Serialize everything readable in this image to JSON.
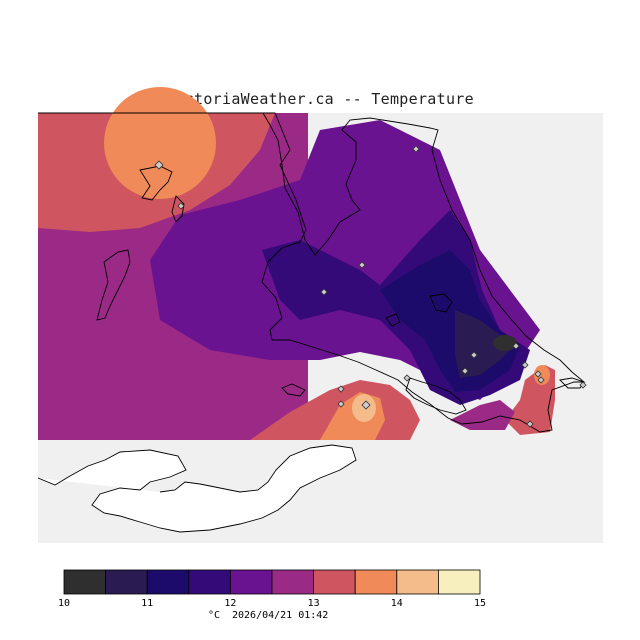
{
  "title": "VictoriaWeather.ca -- Temperature",
  "legend": {
    "ticks": [
      "10",
      "11",
      "12",
      "13",
      "14",
      "15"
    ],
    "colors": [
      "#2f2f2f",
      "#2a1c52",
      "#1c0b6b",
      "#330a78",
      "#6a1390",
      "#9a2a86",
      "#cf5660",
      "#f08a58",
      "#f4bc8a",
      "#f7efbd"
    ],
    "unit": "°C",
    "timestamp": "2026/04/21 01:42"
  },
  "colors": {
    "land_background": "#f0f0f0",
    "water": "#ffffff",
    "coastline": "#000000",
    "station_marker": "#cccccc"
  }
}
